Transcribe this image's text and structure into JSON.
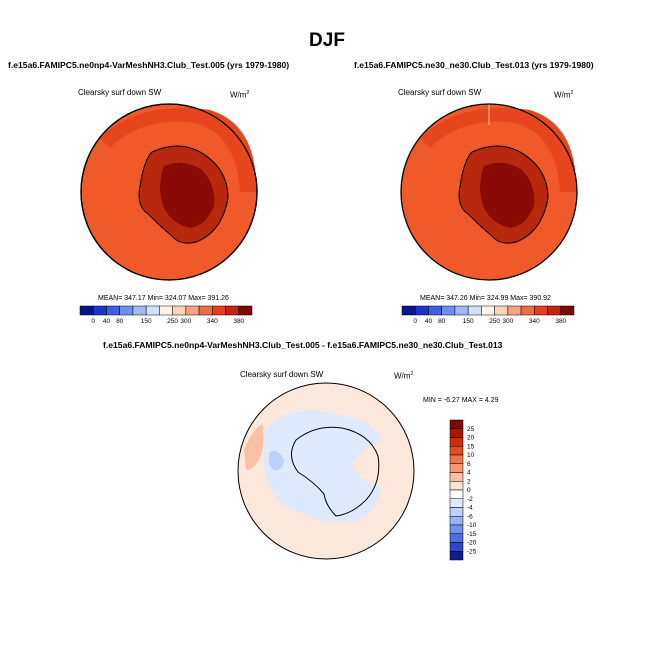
{
  "page": {
    "title": "DJF"
  },
  "panels": [
    {
      "case_title": "f.e15a6.FAMIPC5.ne0np4-VarMeshNH3.Club_Test.005 (yrs 1979-1980)",
      "variable": "Clearsky surf down SW",
      "units_base": "W/m",
      "units_exp": "2",
      "stats": "MEAN= 347.17  Min= 324.07  Max= 391.26"
    },
    {
      "case_title": "f.e15a6.FAMIPC5.ne30_ne30.Club_Test.013 (yrs 1979-1980)",
      "variable": "Clearsky surf down SW",
      "units_base": "W/m",
      "units_exp": "2",
      "stats": "MEAN= 347.26  Min= 324.99  Max= 390.92"
    }
  ],
  "diff_panel": {
    "case_title": "f.e15a6.FAMIPC5.ne0np4-VarMeshNH3.Club_Test.005 - f.e15a6.FAMIPC5.ne30_ne30.Club_Test.013",
    "variable": "Clearsky surf down SW",
    "units_base": "W/m",
    "units_exp": "2",
    "stats": "MIN =  -6.27 MAX =   4.29"
  },
  "chart_data": [
    {
      "type": "heatmap",
      "projection": "south-polar-stereographic",
      "field": "Clearsky surf down SW",
      "units": "W/m2",
      "mean": 347.17,
      "min": 324.07,
      "max": 391.26,
      "levels": [
        0,
        40,
        80,
        120,
        150,
        200,
        250,
        300,
        320,
        340,
        360,
        380
      ],
      "level_labels": [
        "0",
        "40",
        "80",
        "150",
        "250",
        "300",
        "340",
        "380"
      ],
      "colors": [
        "#08148a",
        "#1a36c8",
        "#3e5fe0",
        "#6a8ff0",
        "#9cb8f6",
        "#cfe0fb",
        "#fff4ea",
        "#fcd2b8",
        "#f7a27e",
        "#f06c45",
        "#e63e1c",
        "#c42510",
        "#7c0a05"
      ]
    },
    {
      "type": "heatmap",
      "projection": "south-polar-stereographic",
      "field": "Clearsky surf down SW",
      "units": "W/m2",
      "mean": 347.26,
      "min": 324.99,
      "max": 390.92,
      "levels": [
        0,
        40,
        80,
        120,
        150,
        200,
        250,
        300,
        320,
        340,
        360,
        380
      ],
      "level_labels": [
        "0",
        "40",
        "80",
        "150",
        "250",
        "300",
        "340",
        "380"
      ],
      "colors": [
        "#08148a",
        "#1a36c8",
        "#3e5fe0",
        "#6a8ff0",
        "#9cb8f6",
        "#cfe0fb",
        "#fff4ea",
        "#fcd2b8",
        "#f7a27e",
        "#f06c45",
        "#e63e1c",
        "#c42510",
        "#7c0a05"
      ]
    },
    {
      "type": "heatmap",
      "projection": "south-polar-stereographic",
      "field": "Clearsky surf down SW difference",
      "units": "W/m2",
      "min": -6.27,
      "max": 4.29,
      "levels": [
        -25,
        -20,
        -15,
        -10,
        -6,
        -4,
        -2,
        0,
        2,
        4,
        6,
        10,
        15,
        20,
        25
      ],
      "level_labels": [
        "25",
        "20",
        "15",
        "10",
        "6",
        "4",
        "2",
        "0",
        "-2",
        "-4",
        "-6",
        "-10",
        "-15",
        "-20",
        "-25"
      ],
      "colors": [
        "#7c0a05",
        "#a8180a",
        "#cc2d12",
        "#e24d26",
        "#ef7448",
        "#f59872",
        "#fac0a4",
        "#fde3d4",
        "#ffffff",
        "#dfe9fc",
        "#bcd0f8",
        "#97b4f2",
        "#6f93ea",
        "#4a6ddf",
        "#2c48c8",
        "#0c1f8c"
      ]
    }
  ]
}
